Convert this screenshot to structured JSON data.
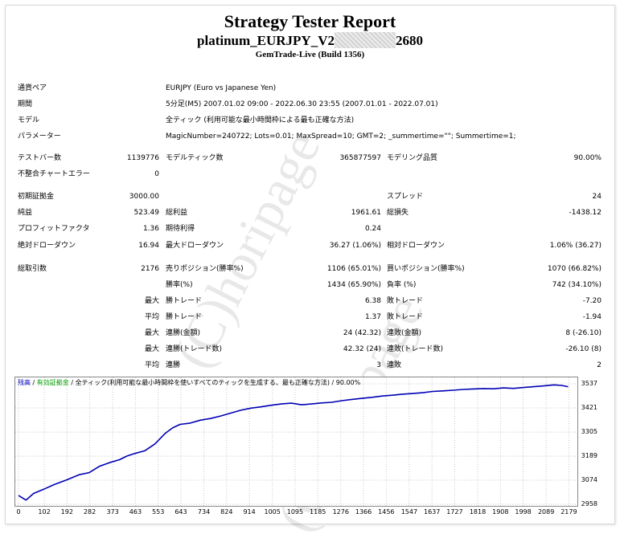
{
  "header": {
    "title": "Strategy Tester Report",
    "ea_name_prefix": "platinum_EURJPY_V2",
    "ea_name_suffix": "2680",
    "server": "GemTrade-Live (Build 1356)"
  },
  "watermark": "(C)horipage",
  "info": {
    "symbol_label": "通貨ペア",
    "symbol_value": "EURJPY (Euro vs Japanese Yen)",
    "period_label": "期間",
    "period_value": "5分足(M5) 2007.01.02 09:00 - 2022.06.30 23:55 (2007.01.01 - 2022.07.01)",
    "model_label": "モデル",
    "model_value": "全ティック (利用可能な最小時間枠による最も正確な方法)",
    "params_label": "パラメーター",
    "params_value": "MagicNumber=240722; Lots=0.01; MaxSpread=10; GMT=2; _summertime=\"\"; Summertime=1;"
  },
  "stats": {
    "bars_label": "テストバー数",
    "bars_value": "1139776",
    "ticks_label": "モデルティック数",
    "ticks_value": "365877597",
    "quality_label": "モデリング品質",
    "quality_value": "90.00%",
    "mismatch_label": "不整合チャートエラー",
    "mismatch_value": "0",
    "deposit_label": "初期証拠金",
    "deposit_value": "3000.00",
    "spread_label": "スプレッド",
    "spread_value": "24",
    "netprofit_label": "純益",
    "netprofit_value": "523.49",
    "grossprofit_label": "総利益",
    "grossprofit_value": "1961.61",
    "grossloss_label": "総損失",
    "grossloss_value": "-1438.12",
    "pf_label": "プロフィットファクタ",
    "pf_value": "1.36",
    "expected_label": "期待利得",
    "expected_value": "0.24",
    "absdd_label": "絶対ドローダウン",
    "absdd_value": "16.94",
    "maxdd_label": "最大ドローダウン",
    "maxdd_value": "36.27 (1.06%)",
    "reldd_label": "相対ドローダウン",
    "reldd_value": "1.06% (36.27)",
    "trades_label": "総取引数",
    "trades_value": "2176",
    "short_label": "売りポジション(勝率%)",
    "short_value": "1106 (65.01%)",
    "long_label": "買いポジション(勝率%)",
    "long_value": "1070 (66.82%)",
    "win_label": "勝率(%)",
    "win_value": "1434 (65.90%)",
    "loss_label": "負率 (%)",
    "loss_value": "742 (34.10%)",
    "max_label": "最大",
    "avg_label": "平均",
    "largest_win_label": "勝トレード",
    "largest_win_value": "6.38",
    "largest_loss_label": "敗トレード",
    "largest_loss_value": "-7.20",
    "avg_win_label": "勝トレード",
    "avg_win_value": "1.37",
    "avg_loss_label": "敗トレード",
    "avg_loss_value": "-1.94",
    "consec_win_money_label": "連勝(金額)",
    "consec_win_money_value": "24 (42.32)",
    "consec_loss_money_label": "連敗(金額)",
    "consec_loss_money_value": "8 (-26.10)",
    "consec_win_trades_label": "連勝(トレード数)",
    "consec_win_trades_value": "42.32 (24)",
    "consec_loss_trades_label": "連敗(トレード数)",
    "consec_loss_trades_value": "-26.10 (8)",
    "avg_consec_win_label": "連勝",
    "avg_consec_win_value": "3",
    "avg_consec_loss_label": "連敗",
    "avg_consec_loss_value": "2"
  },
  "chart_data": {
    "type": "line",
    "legend": {
      "balance": "残高",
      "equity": "有効証拠金",
      "rest": " / 全ティック(利用可能な最小時間枠を使いすべてのティックを生成する、最も正確な方法) / 90.00%"
    },
    "xlabel": "",
    "ylabel": "",
    "x_ticks": [
      "0",
      "102",
      "192",
      "282",
      "373",
      "463",
      "553",
      "643",
      "734",
      "824",
      "914",
      "1005",
      "1095",
      "1185",
      "1276",
      "1366",
      "1456",
      "1547",
      "1637",
      "1727",
      "1818",
      "1908",
      "1998",
      "2089",
      "2179"
    ],
    "y_ticks": [
      "3537",
      "3421",
      "3305",
      "3189",
      "3074",
      "2958"
    ],
    "xlim": [
      0,
      2200
    ],
    "ylim": [
      2958,
      3560
    ],
    "colors": {
      "balance": "#0000b4",
      "equity": "#00a000",
      "grid": "#c8c8c8"
    },
    "series": [
      {
        "name": "残高",
        "x": [
          0,
          30,
          60,
          100,
          140,
          190,
          240,
          280,
          320,
          360,
          400,
          430,
          460,
          500,
          540,
          580,
          610,
          640,
          680,
          720,
          760,
          800,
          840,
          880,
          920,
          960,
          1000,
          1040,
          1080,
          1120,
          1160,
          1200,
          1240,
          1280,
          1320,
          1360,
          1400,
          1440,
          1480,
          1520,
          1560,
          1600,
          1640,
          1680,
          1720,
          1760,
          1800,
          1840,
          1880,
          1920,
          1960,
          2000,
          2040,
          2080,
          2120,
          2150,
          2176
        ],
        "values": [
          3000,
          2978,
          3010,
          3030,
          3052,
          3075,
          3100,
          3110,
          3140,
          3158,
          3172,
          3190,
          3202,
          3215,
          3248,
          3298,
          3325,
          3342,
          3348,
          3362,
          3370,
          3382,
          3396,
          3410,
          3420,
          3426,
          3434,
          3440,
          3444,
          3436,
          3440,
          3445,
          3448,
          3456,
          3462,
          3467,
          3472,
          3478,
          3482,
          3487,
          3490,
          3494,
          3500,
          3503,
          3506,
          3510,
          3512,
          3514,
          3513,
          3517,
          3515,
          3519,
          3523,
          3527,
          3532,
          3529,
          3523
        ]
      }
    ]
  }
}
